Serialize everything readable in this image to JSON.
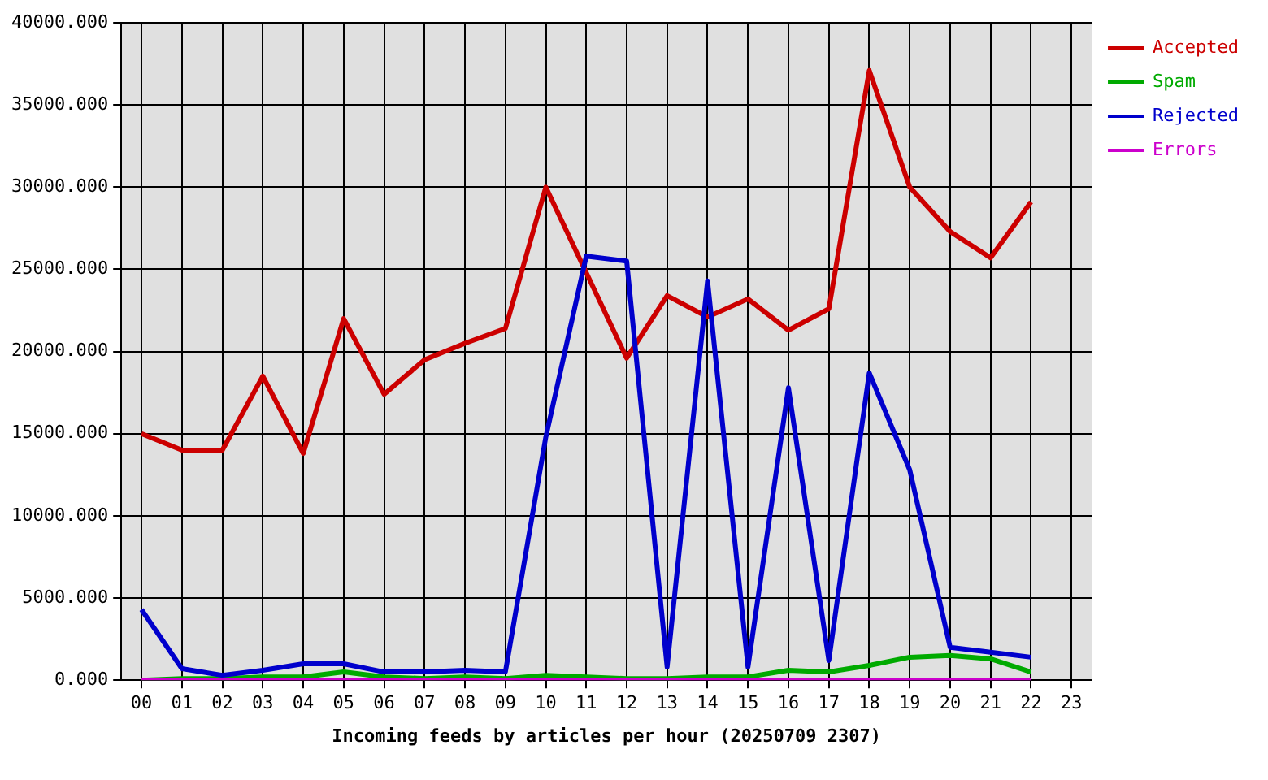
{
  "chart_data": {
    "type": "line",
    "xlabel": "Incoming feeds by articles per hour (20250709 2307)",
    "categories": [
      "00",
      "01",
      "02",
      "03",
      "04",
      "05",
      "06",
      "07",
      "08",
      "09",
      "10",
      "11",
      "12",
      "13",
      "14",
      "15",
      "16",
      "17",
      "18",
      "19",
      "20",
      "21",
      "22",
      "23"
    ],
    "ylim": [
      0,
      40000
    ],
    "yticks": [
      {
        "value": 0,
        "label": "0.000"
      },
      {
        "value": 5000,
        "label": "5000.000"
      },
      {
        "value": 10000,
        "label": "10000.000"
      },
      {
        "value": 15000,
        "label": "15000.000"
      },
      {
        "value": 20000,
        "label": "20000.000"
      },
      {
        "value": 25000,
        "label": "25000.000"
      },
      {
        "value": 30000,
        "label": "30000.000"
      },
      {
        "value": 35000,
        "label": "35000.000"
      },
      {
        "value": 40000,
        "label": "40000.000"
      }
    ],
    "grid": true,
    "legend": "right",
    "marker": "none",
    "line_style": "solid",
    "series": [
      {
        "name": "Accepted",
        "color": "#cc0000",
        "values": [
          15000,
          14000,
          14000,
          18500,
          13800,
          22000,
          17400,
          19500,
          20500,
          21400,
          30000,
          24800,
          19600,
          23400,
          22100,
          23200,
          21300,
          22600,
          37100,
          30000,
          27300,
          25700,
          29100,
          null
        ]
      },
      {
        "name": "Spam",
        "color": "#00aa00",
        "values": [
          0,
          100,
          100,
          200,
          200,
          500,
          200,
          100,
          200,
          100,
          300,
          200,
          100,
          100,
          200,
          200,
          600,
          500,
          900,
          1400,
          1500,
          1300,
          500,
          null
        ]
      },
      {
        "name": "Rejected",
        "color": "#0000cc",
        "values": [
          4300,
          700,
          300,
          600,
          1000,
          1000,
          500,
          500,
          600,
          500,
          14800,
          25800,
          25500,
          800,
          24300,
          800,
          17800,
          1200,
          18700,
          12800,
          2000,
          1700,
          1400,
          null
        ]
      },
      {
        "name": "Errors",
        "color": "#cc00cc",
        "values": [
          0,
          0,
          0,
          0,
          0,
          0,
          0,
          0,
          0,
          0,
          0,
          0,
          0,
          0,
          0,
          0,
          0,
          0,
          0,
          0,
          0,
          0,
          0,
          null
        ]
      }
    ]
  }
}
